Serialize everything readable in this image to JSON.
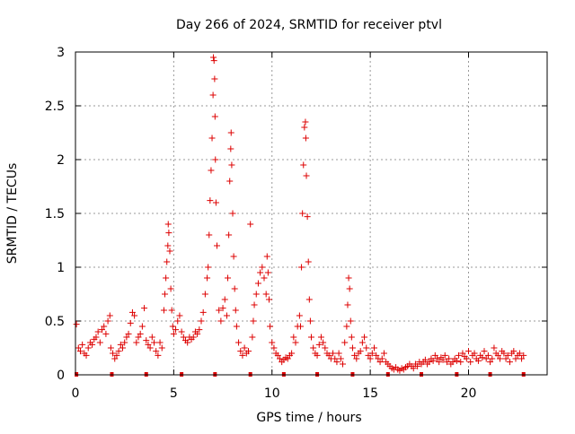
{
  "chart_data": {
    "type": "scatter",
    "title": "Day 266 of 2024, SRMTID for receiver ptvl",
    "xlabel": "GPS time / hours",
    "ylabel": "SRMTID / TECUs",
    "xlim": [
      0,
      24
    ],
    "ylim": [
      0,
      3
    ],
    "x_ticks": [
      0,
      5,
      10,
      15,
      20
    ],
    "x_tick_labels": [
      "0",
      "5",
      "10",
      "15",
      "20"
    ],
    "y_ticks": [
      0,
      0.5,
      1,
      1.5,
      2,
      2.5,
      3
    ],
    "y_tick_labels": [
      "0",
      "0.5",
      "1",
      "1.5",
      "2",
      "2.5",
      "3"
    ],
    "grid": true,
    "marker": "+",
    "marker_color": "#dd0000",
    "baseline_marker_color": "#dd0000",
    "baseline_marks": [
      0.05,
      1.85,
      3.6,
      5.4,
      7.1,
      8.9,
      10.6,
      12.3,
      14.1,
      15.9,
      17.6,
      19.4,
      21.1,
      22.8
    ],
    "series": [
      {
        "name": "SRMTID",
        "points": [
          [
            0.05,
            0.47
          ],
          [
            0.15,
            0.25
          ],
          [
            0.25,
            0.22
          ],
          [
            0.35,
            0.28
          ],
          [
            0.45,
            0.2
          ],
          [
            0.55,
            0.18
          ],
          [
            0.65,
            0.25
          ],
          [
            0.75,
            0.3
          ],
          [
            0.85,
            0.28
          ],
          [
            0.95,
            0.33
          ],
          [
            1.05,
            0.35
          ],
          [
            1.15,
            0.4
          ],
          [
            1.25,
            0.3
          ],
          [
            1.35,
            0.42
          ],
          [
            1.45,
            0.45
          ],
          [
            1.55,
            0.38
          ],
          [
            1.65,
            0.5
          ],
          [
            1.75,
            0.55
          ],
          [
            1.8,
            0.25
          ],
          [
            1.9,
            0.2
          ],
          [
            2.0,
            0.15
          ],
          [
            2.1,
            0.18
          ],
          [
            2.2,
            0.22
          ],
          [
            2.3,
            0.28
          ],
          [
            2.4,
            0.25
          ],
          [
            2.5,
            0.3
          ],
          [
            2.6,
            0.35
          ],
          [
            2.7,
            0.38
          ],
          [
            2.8,
            0.48
          ],
          [
            2.9,
            0.58
          ],
          [
            3.0,
            0.55
          ],
          [
            3.1,
            0.3
          ],
          [
            3.2,
            0.35
          ],
          [
            3.3,
            0.38
          ],
          [
            3.4,
            0.45
          ],
          [
            3.5,
            0.62
          ],
          [
            3.6,
            0.32
          ],
          [
            3.7,
            0.28
          ],
          [
            3.8,
            0.25
          ],
          [
            3.9,
            0.35
          ],
          [
            4.0,
            0.3
          ],
          [
            4.1,
            0.22
          ],
          [
            4.2,
            0.18
          ],
          [
            4.3,
            0.3
          ],
          [
            4.4,
            0.25
          ],
          [
            4.5,
            0.6
          ],
          [
            4.55,
            0.75
          ],
          [
            4.6,
            0.9
          ],
          [
            4.65,
            1.05
          ],
          [
            4.7,
            1.2
          ],
          [
            4.72,
            1.4
          ],
          [
            4.75,
            1.32
          ],
          [
            4.8,
            1.15
          ],
          [
            4.85,
            0.8
          ],
          [
            4.9,
            0.6
          ],
          [
            4.95,
            0.45
          ],
          [
            5.0,
            0.38
          ],
          [
            5.1,
            0.42
          ],
          [
            5.2,
            0.5
          ],
          [
            5.3,
            0.55
          ],
          [
            5.4,
            0.4
          ],
          [
            5.5,
            0.35
          ],
          [
            5.6,
            0.32
          ],
          [
            5.7,
            0.3
          ],
          [
            5.8,
            0.35
          ],
          [
            5.9,
            0.33
          ],
          [
            6.0,
            0.35
          ],
          [
            6.1,
            0.4
          ],
          [
            6.2,
            0.38
          ],
          [
            6.3,
            0.42
          ],
          [
            6.4,
            0.5
          ],
          [
            6.5,
            0.58
          ],
          [
            6.6,
            0.75
          ],
          [
            6.7,
            0.9
          ],
          [
            6.75,
            1.0
          ],
          [
            6.8,
            1.3
          ],
          [
            6.85,
            1.62
          ],
          [
            6.9,
            1.9
          ],
          [
            6.95,
            2.2
          ],
          [
            7.0,
            2.6
          ],
          [
            7.02,
            2.95
          ],
          [
            7.05,
            2.92
          ],
          [
            7.08,
            2.75
          ],
          [
            7.1,
            2.4
          ],
          [
            7.12,
            2.0
          ],
          [
            7.15,
            1.6
          ],
          [
            7.2,
            1.2
          ],
          [
            7.3,
            0.6
          ],
          [
            7.4,
            0.5
          ],
          [
            7.5,
            0.62
          ],
          [
            7.6,
            0.7
          ],
          [
            7.7,
            0.55
          ],
          [
            7.75,
            0.9
          ],
          [
            7.8,
            1.3
          ],
          [
            7.85,
            1.8
          ],
          [
            7.9,
            2.1
          ],
          [
            7.92,
            2.25
          ],
          [
            7.95,
            1.95
          ],
          [
            8.0,
            1.5
          ],
          [
            8.05,
            1.1
          ],
          [
            8.1,
            0.8
          ],
          [
            8.15,
            0.6
          ],
          [
            8.2,
            0.45
          ],
          [
            8.3,
            0.3
          ],
          [
            8.4,
            0.22
          ],
          [
            8.5,
            0.18
          ],
          [
            8.6,
            0.25
          ],
          [
            8.7,
            0.2
          ],
          [
            8.8,
            0.22
          ],
          [
            8.9,
            1.4
          ],
          [
            9.0,
            0.35
          ],
          [
            9.05,
            0.5
          ],
          [
            9.1,
            0.65
          ],
          [
            9.2,
            0.75
          ],
          [
            9.3,
            0.85
          ],
          [
            9.4,
            0.95
          ],
          [
            9.5,
            1.0
          ],
          [
            9.6,
            0.9
          ],
          [
            9.7,
            0.75
          ],
          [
            9.75,
            1.1
          ],
          [
            9.8,
            0.95
          ],
          [
            9.85,
            0.7
          ],
          [
            9.9,
            0.45
          ],
          [
            10.0,
            0.3
          ],
          [
            10.1,
            0.25
          ],
          [
            10.2,
            0.2
          ],
          [
            10.3,
            0.18
          ],
          [
            10.4,
            0.15
          ],
          [
            10.5,
            0.12
          ],
          [
            10.6,
            0.14
          ],
          [
            10.7,
            0.16
          ],
          [
            10.8,
            0.15
          ],
          [
            10.9,
            0.18
          ],
          [
            11.0,
            0.2
          ],
          [
            11.1,
            0.35
          ],
          [
            11.2,
            0.3
          ],
          [
            11.3,
            0.45
          ],
          [
            11.4,
            0.55
          ],
          [
            11.45,
            0.45
          ],
          [
            11.5,
            1.0
          ],
          [
            11.55,
            1.5
          ],
          [
            11.6,
            1.95
          ],
          [
            11.65,
            2.3
          ],
          [
            11.7,
            2.35
          ],
          [
            11.72,
            2.2
          ],
          [
            11.75,
            1.85
          ],
          [
            11.8,
            1.47
          ],
          [
            11.85,
            1.05
          ],
          [
            11.9,
            0.7
          ],
          [
            11.95,
            0.5
          ],
          [
            12.0,
            0.35
          ],
          [
            12.1,
            0.25
          ],
          [
            12.2,
            0.2
          ],
          [
            12.3,
            0.18
          ],
          [
            12.4,
            0.28
          ],
          [
            12.5,
            0.35
          ],
          [
            12.6,
            0.3
          ],
          [
            12.7,
            0.25
          ],
          [
            12.8,
            0.2
          ],
          [
            12.9,
            0.18
          ],
          [
            13.0,
            0.15
          ],
          [
            13.1,
            0.2
          ],
          [
            13.2,
            0.15
          ],
          [
            13.3,
            0.12
          ],
          [
            13.4,
            0.2
          ],
          [
            13.5,
            0.15
          ],
          [
            13.6,
            0.1
          ],
          [
            13.7,
            0.3
          ],
          [
            13.8,
            0.45
          ],
          [
            13.85,
            0.65
          ],
          [
            13.9,
            0.9
          ],
          [
            13.95,
            0.8
          ],
          [
            14.0,
            0.5
          ],
          [
            14.05,
            0.35
          ],
          [
            14.1,
            0.25
          ],
          [
            14.2,
            0.18
          ],
          [
            14.3,
            0.15
          ],
          [
            14.4,
            0.2
          ],
          [
            14.5,
            0.22
          ],
          [
            14.6,
            0.3
          ],
          [
            14.7,
            0.35
          ],
          [
            14.8,
            0.25
          ],
          [
            14.9,
            0.18
          ],
          [
            15.0,
            0.15
          ],
          [
            15.1,
            0.2
          ],
          [
            15.2,
            0.25
          ],
          [
            15.3,
            0.18
          ],
          [
            15.4,
            0.15
          ],
          [
            15.5,
            0.12
          ],
          [
            15.6,
            0.15
          ],
          [
            15.7,
            0.2
          ],
          [
            15.8,
            0.12
          ],
          [
            15.9,
            0.1
          ],
          [
            16.0,
            0.08
          ],
          [
            16.1,
            0.06
          ],
          [
            16.2,
            0.05
          ],
          [
            16.3,
            0.07
          ],
          [
            16.4,
            0.05
          ],
          [
            16.5,
            0.04
          ],
          [
            16.6,
            0.06
          ],
          [
            16.7,
            0.05
          ],
          [
            16.8,
            0.07
          ],
          [
            16.9,
            0.08
          ],
          [
            17.0,
            0.1
          ],
          [
            17.1,
            0.08
          ],
          [
            17.2,
            0.06
          ],
          [
            17.3,
            0.1
          ],
          [
            17.4,
            0.08
          ],
          [
            17.5,
            0.12
          ],
          [
            17.6,
            0.1
          ],
          [
            17.7,
            0.12
          ],
          [
            17.8,
            0.14
          ],
          [
            17.9,
            0.1
          ],
          [
            18.0,
            0.12
          ],
          [
            18.1,
            0.15
          ],
          [
            18.2,
            0.13
          ],
          [
            18.3,
            0.18
          ],
          [
            18.4,
            0.15
          ],
          [
            18.5,
            0.12
          ],
          [
            18.6,
            0.16
          ],
          [
            18.7,
            0.14
          ],
          [
            18.8,
            0.18
          ],
          [
            18.9,
            0.12
          ],
          [
            19.0,
            0.15
          ],
          [
            19.1,
            0.1
          ],
          [
            19.2,
            0.12
          ],
          [
            19.3,
            0.15
          ],
          [
            19.4,
            0.13
          ],
          [
            19.5,
            0.18
          ],
          [
            19.6,
            0.12
          ],
          [
            19.7,
            0.2
          ],
          [
            19.8,
            0.17
          ],
          [
            19.9,
            0.15
          ],
          [
            20.0,
            0.22
          ],
          [
            20.1,
            0.12
          ],
          [
            20.2,
            0.18
          ],
          [
            20.3,
            0.2
          ],
          [
            20.4,
            0.15
          ],
          [
            20.5,
            0.13
          ],
          [
            20.6,
            0.18
          ],
          [
            20.7,
            0.16
          ],
          [
            20.8,
            0.22
          ],
          [
            20.9,
            0.15
          ],
          [
            21.0,
            0.18
          ],
          [
            21.1,
            0.12
          ],
          [
            21.2,
            0.15
          ],
          [
            21.3,
            0.25
          ],
          [
            21.4,
            0.2
          ],
          [
            21.5,
            0.18
          ],
          [
            21.6,
            0.15
          ],
          [
            21.7,
            0.22
          ],
          [
            21.8,
            0.2
          ],
          [
            21.9,
            0.15
          ],
          [
            22.0,
            0.18
          ],
          [
            22.1,
            0.12
          ],
          [
            22.2,
            0.2
          ],
          [
            22.3,
            0.22
          ],
          [
            22.4,
            0.15
          ],
          [
            22.5,
            0.18
          ],
          [
            22.6,
            0.2
          ],
          [
            22.7,
            0.15
          ],
          [
            22.8,
            0.18
          ]
        ]
      }
    ]
  }
}
